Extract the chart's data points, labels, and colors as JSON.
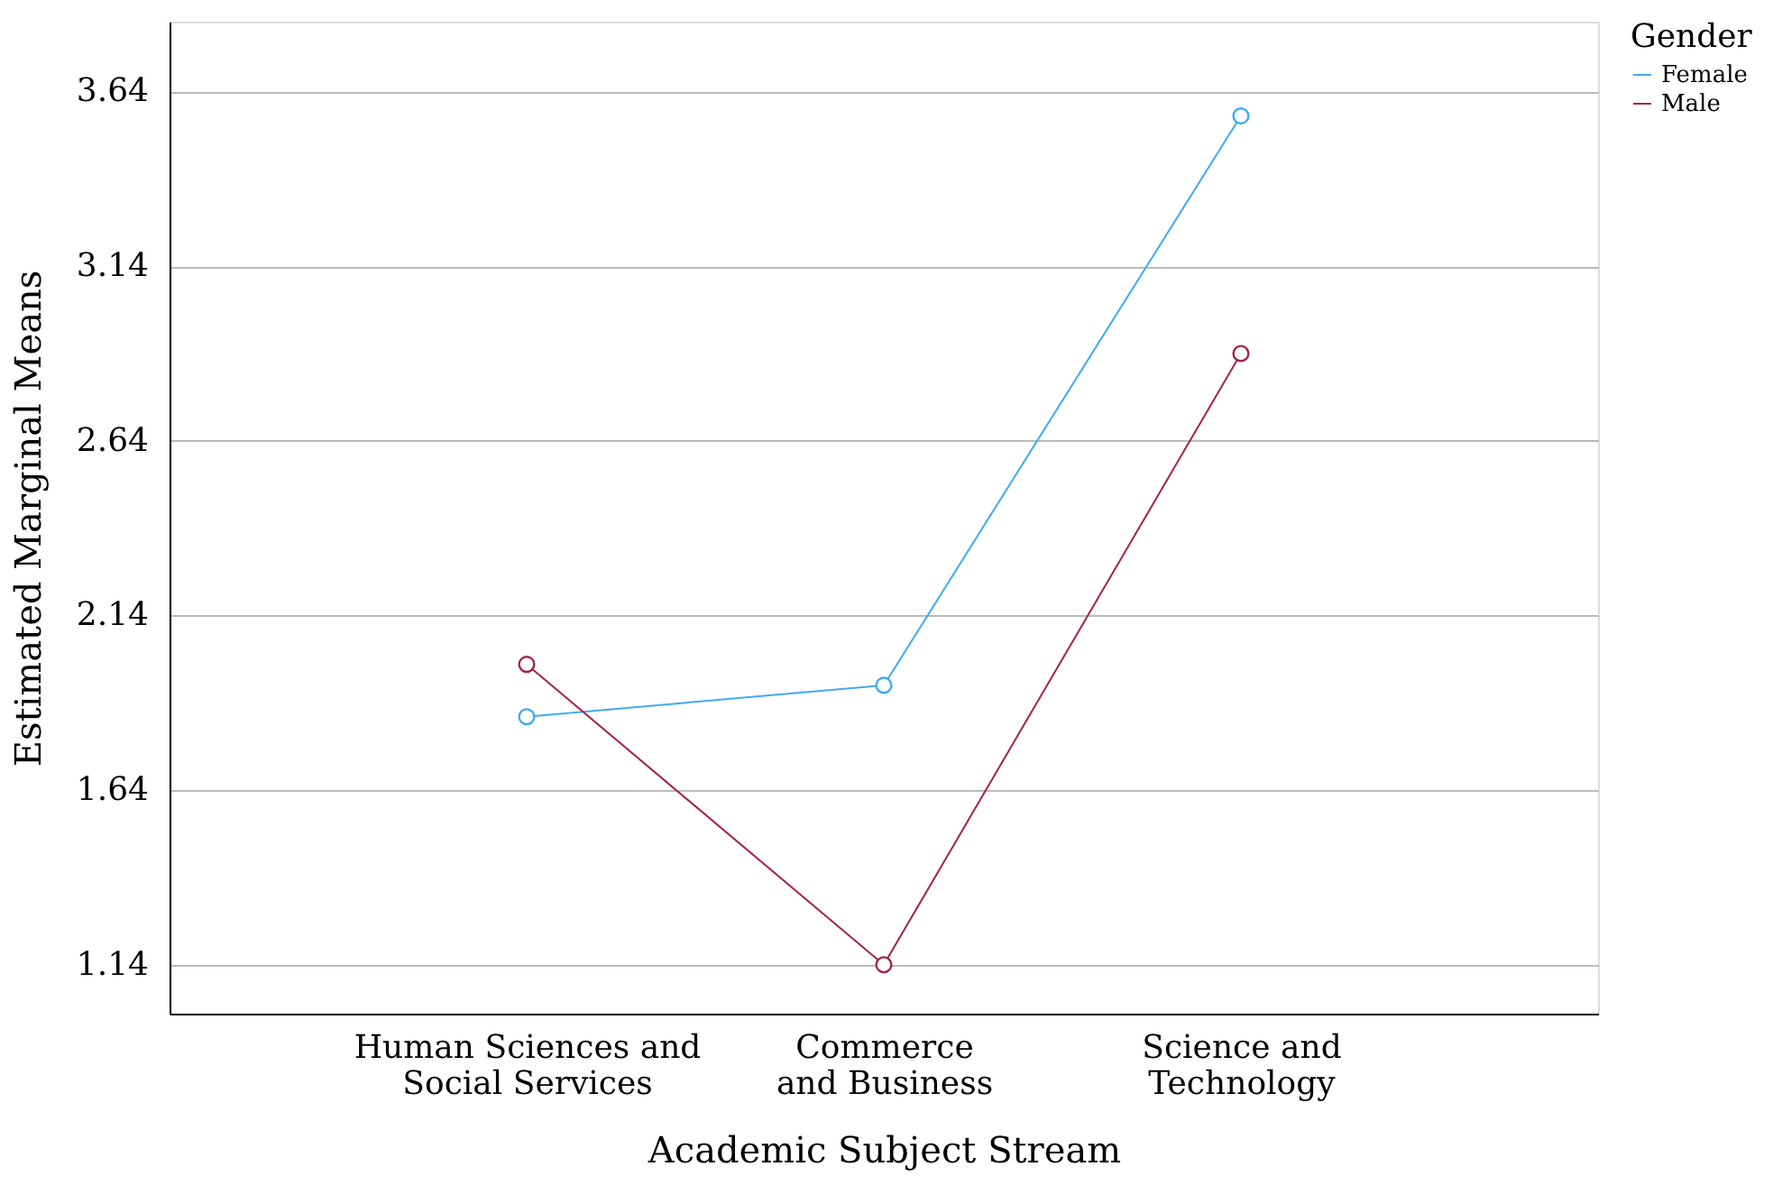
{
  "chart_data": {
    "type": "line",
    "xlabel": "Academic Subject Stream",
    "ylabel": "Estimated Marginal Means",
    "legend_title": "Gender",
    "categories": [
      "Human Sciences and Social Services",
      "Commerce and Business",
      "Science and Technology"
    ],
    "series": [
      {
        "name": "Female",
        "color": "#3fa9f5",
        "values": [
          1.85,
          1.94,
          3.57
        ]
      },
      {
        "name": "Male",
        "color": "#a3234f",
        "values": [
          2.0,
          1.14,
          2.89
        ]
      }
    ],
    "ylim": [
      1.0,
      3.84
    ],
    "yticks": [
      1.14,
      1.64,
      2.14,
      2.64,
      3.14,
      3.64
    ],
    "grid": "y",
    "legend": "top right",
    "marker": "circle",
    "line_style": "solid"
  }
}
